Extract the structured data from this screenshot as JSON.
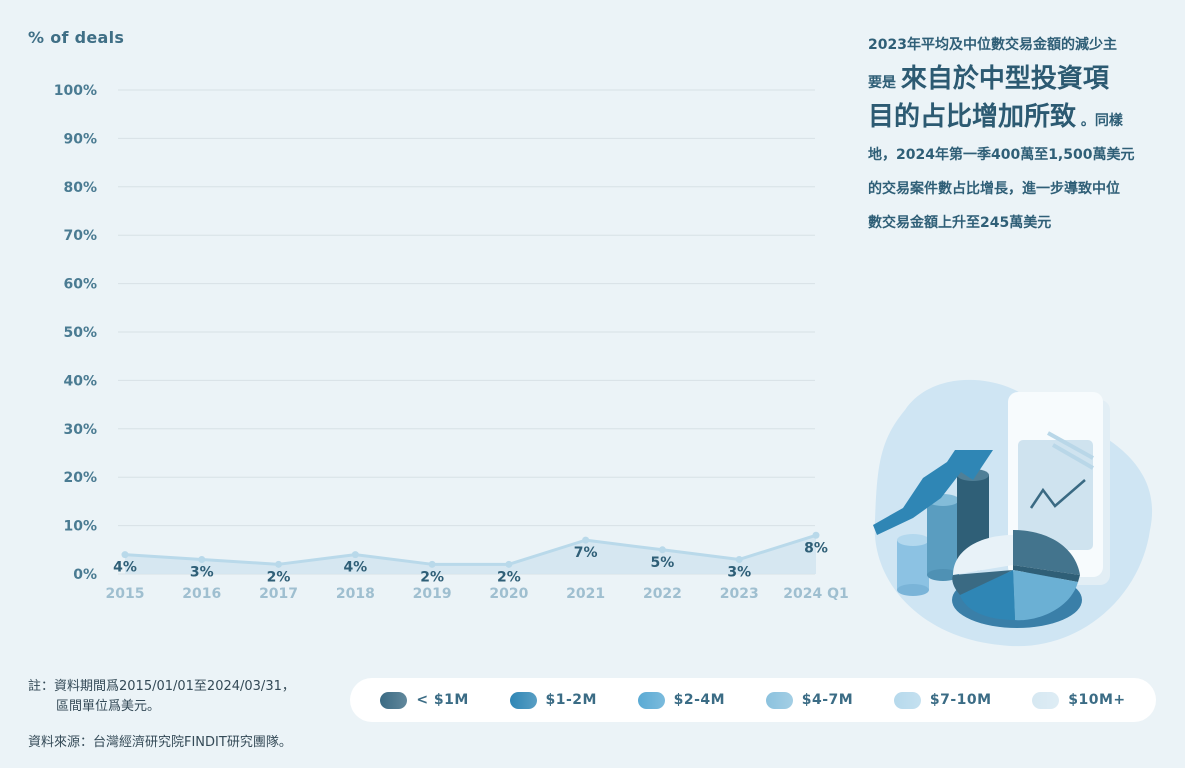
{
  "ylabel": "% of deals",
  "chart_data": {
    "type": "area",
    "x": [
      "2015",
      "2016",
      "2017",
      "2018",
      "2019",
      "2020",
      "2021",
      "2022",
      "2023",
      "2024 Q1"
    ],
    "series": [
      {
        "values": [
          4,
          3,
          2,
          4,
          2,
          2,
          7,
          5,
          3,
          8
        ],
        "labels": [
          "4%",
          "3%",
          "2%",
          "4%",
          "2%",
          "2%",
          "7%",
          "5%",
          "3%",
          "8%"
        ]
      }
    ],
    "yticks": [
      "0%",
      "10%",
      "20%",
      "30%",
      "40%",
      "50%",
      "60%",
      "70%",
      "80%",
      "90%",
      "100%"
    ],
    "ylim": [
      0,
      100
    ],
    "grid": true,
    "colors": {
      "line": "#b9d9ea",
      "fill": "#d4e6ef",
      "label": "#2f5f77",
      "xtick": "#9fbfd0",
      "ytick": "#4a7b92",
      "grid": "#d7e1e6"
    }
  },
  "summary": {
    "line1": "2023年平均及中位數交易金額的減少主",
    "line2_prefix": "要是",
    "line2_big": "來自於中型投資項",
    "line3_big": "目的占比增加所致",
    "line3_suffix": "。同樣",
    "line4": "地，2024年第一季400萬至1,500萬美元",
    "line5": "的交易案件數占比增長，進一步導致中位",
    "line6": "數交易金額上升至245萬美元"
  },
  "notes": {
    "line1": "註：資料期間爲2015/01/01至2024/03/31，",
    "line2": "區間單位爲美元。",
    "source": "資料來源：台灣經濟研究院FINDIT研究團隊。"
  },
  "legend": [
    {
      "label": "< $1M",
      "color": "#3a6a83"
    },
    {
      "label": "$1-2M",
      "color": "#2f86b5"
    },
    {
      "label": "$2-4M",
      "color": "#5aaad4"
    },
    {
      "label": "$4-7M",
      "color": "#8cc2de"
    },
    {
      "label": "$7-10M",
      "color": "#b6d9ec"
    },
    {
      "label": "$10M+",
      "color": "#d6e8f2"
    }
  ]
}
